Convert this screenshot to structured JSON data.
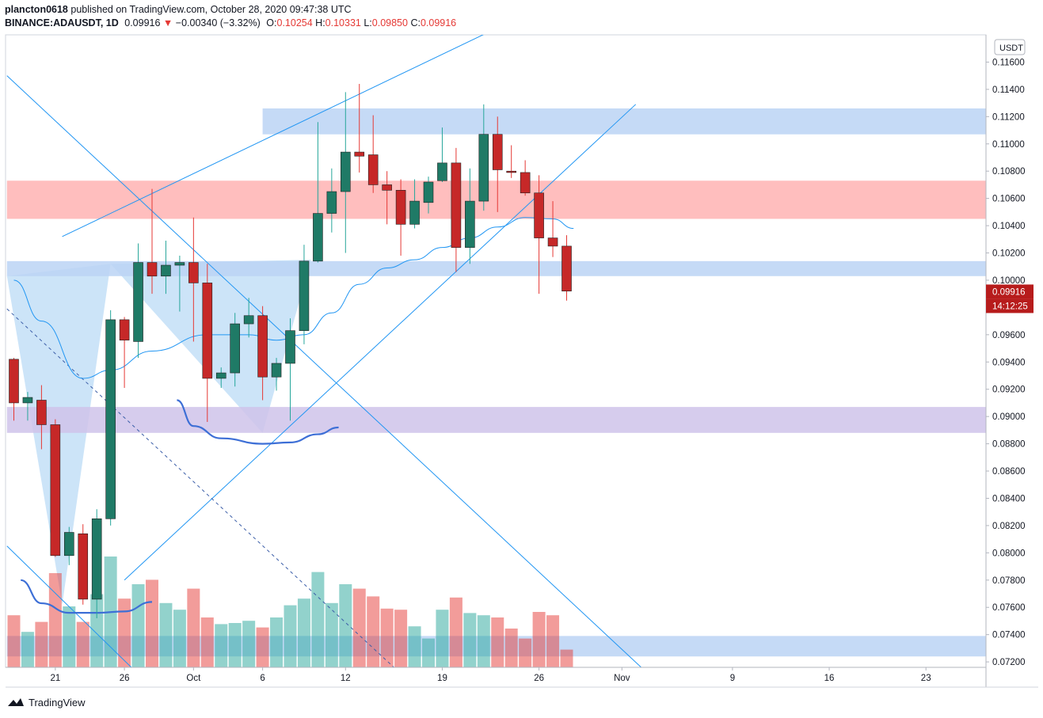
{
  "header": {
    "line1": {
      "user": "plancton0618",
      "text": " published on TradingView.com, October 28, 2020 09:47:38 UTC"
    },
    "symbol": "BINANCE:ADAUSDT, 1D",
    "last": "0.09916",
    "arrow": "▼",
    "change": "−0.00340 (−3.32%)",
    "o_label": "O:",
    "o": "0.10254",
    "h_label": "H:",
    "h": "0.10331",
    "l_label": "L:",
    "l": "0.09850",
    "c_label": "C:",
    "c": "0.09916"
  },
  "footer": {
    "brand": "TradingView"
  },
  "colors": {
    "up": "#26a69a",
    "upDark": "#1f6b5c",
    "down": "#e53935",
    "downDark": "#b71c1c",
    "line": "#2196f3",
    "zoneBlue": "#bbd3f5",
    "zoneRed": "#ffb3b3",
    "zonePurple": "#cfc3ea",
    "grid": "#ffffff"
  },
  "chart_data": {
    "type": "candlestick",
    "currency_label": "USDT",
    "ylim": [
      0.0716,
      0.118
    ],
    "yticks": [
      "0.11600",
      "0.11400",
      "0.11200",
      "0.11000",
      "0.10800",
      "0.10600",
      "0.10400",
      "0.10200",
      "0.10000",
      "0.09600",
      "0.09400",
      "0.09200",
      "0.09000",
      "0.08800",
      "0.08600",
      "0.08400",
      "0.08200",
      "0.08000",
      "0.07800",
      "0.07600",
      "0.07400",
      "0.07200"
    ],
    "last_price_label": "0.09916",
    "countdown_label": "14:12:25",
    "xticks": [
      {
        "i": 3,
        "label": "21"
      },
      {
        "i": 8,
        "label": "26"
      },
      {
        "i": 13,
        "label": "Oct"
      },
      {
        "i": 18,
        "label": "6"
      },
      {
        "i": 24,
        "label": "12"
      },
      {
        "i": 31,
        "label": "19"
      },
      {
        "i": 38,
        "label": "26"
      },
      {
        "i": 44,
        "label": "Nov"
      },
      {
        "i": 52,
        "label": "9"
      },
      {
        "i": 59,
        "label": "16"
      },
      {
        "i": 66,
        "label": "23"
      }
    ],
    "candles": [
      {
        "o": 0.0942,
        "h": 0.0943,
        "l": 0.0897,
        "c": 0.091
      },
      {
        "o": 0.091,
        "h": 0.0918,
        "l": 0.0897,
        "c": 0.0914
      },
      {
        "o": 0.0912,
        "h": 0.0923,
        "l": 0.0876,
        "c": 0.0894
      },
      {
        "o": 0.0894,
        "h": 0.0898,
        "l": 0.0797,
        "c": 0.0798
      },
      {
        "o": 0.0798,
        "h": 0.0819,
        "l": 0.0791,
        "c": 0.0815
      },
      {
        "o": 0.0814,
        "h": 0.0821,
        "l": 0.0762,
        "c": 0.0766
      },
      {
        "o": 0.0766,
        "h": 0.0832,
        "l": 0.0752,
        "c": 0.0825
      },
      {
        "o": 0.0825,
        "h": 0.0978,
        "l": 0.082,
        "c": 0.0971
      },
      {
        "o": 0.0971,
        "h": 0.0973,
        "l": 0.0921,
        "c": 0.0956
      },
      {
        "o": 0.0955,
        "h": 0.1027,
        "l": 0.0943,
        "c": 0.1013
      },
      {
        "o": 0.1013,
        "h": 0.1067,
        "l": 0.099,
        "c": 0.1003
      },
      {
        "o": 0.1003,
        "h": 0.1029,
        "l": 0.099,
        "c": 0.1011
      },
      {
        "o": 0.1011,
        "h": 0.1018,
        "l": 0.0977,
        "c": 0.1013
      },
      {
        "o": 0.1013,
        "h": 0.1046,
        "l": 0.0955,
        "c": 0.0998
      },
      {
        "o": 0.0998,
        "h": 0.1012,
        "l": 0.0896,
        "c": 0.0928
      },
      {
        "o": 0.0928,
        "h": 0.0936,
        "l": 0.0921,
        "c": 0.0932
      },
      {
        "o": 0.0932,
        "h": 0.0976,
        "l": 0.0922,
        "c": 0.0968
      },
      {
        "o": 0.0968,
        "h": 0.0987,
        "l": 0.0958,
        "c": 0.0974
      },
      {
        "o": 0.0974,
        "h": 0.0981,
        "l": 0.0912,
        "c": 0.0929
      },
      {
        "o": 0.0929,
        "h": 0.0943,
        "l": 0.0919,
        "c": 0.0939
      },
      {
        "o": 0.0939,
        "h": 0.0972,
        "l": 0.0897,
        "c": 0.0963
      },
      {
        "o": 0.0963,
        "h": 0.1026,
        "l": 0.0953,
        "c": 0.1014
      },
      {
        "o": 0.1014,
        "h": 0.1116,
        "l": 0.1013,
        "c": 0.1049
      },
      {
        "o": 0.1049,
        "h": 0.1082,
        "l": 0.1035,
        "c": 0.1065
      },
      {
        "o": 0.1065,
        "h": 0.1138,
        "l": 0.102,
        "c": 0.1094
      },
      {
        "o": 0.1094,
        "h": 0.1144,
        "l": 0.1079,
        "c": 0.1091
      },
      {
        "o": 0.1092,
        "h": 0.1121,
        "l": 0.1064,
        "c": 0.107
      },
      {
        "o": 0.107,
        "h": 0.108,
        "l": 0.1041,
        "c": 0.1066
      },
      {
        "o": 0.1066,
        "h": 0.1074,
        "l": 0.1018,
        "c": 0.1041
      },
      {
        "o": 0.1041,
        "h": 0.1074,
        "l": 0.1038,
        "c": 0.1058
      },
      {
        "o": 0.1057,
        "h": 0.1076,
        "l": 0.1049,
        "c": 0.1072
      },
      {
        "o": 0.1073,
        "h": 0.1112,
        "l": 0.1072,
        "c": 0.1086
      },
      {
        "o": 0.1086,
        "h": 0.1097,
        "l": 0.1006,
        "c": 0.1024
      },
      {
        "o": 0.1024,
        "h": 0.1082,
        "l": 0.1012,
        "c": 0.1058
      },
      {
        "o": 0.1058,
        "h": 0.1129,
        "l": 0.1051,
        "c": 0.1107
      },
      {
        "o": 0.1107,
        "h": 0.112,
        "l": 0.105,
        "c": 0.1081
      },
      {
        "o": 0.108,
        "h": 0.1099,
        "l": 0.1075,
        "c": 0.1079
      },
      {
        "o": 0.1079,
        "h": 0.1088,
        "l": 0.1062,
        "c": 0.1064
      },
      {
        "o": 0.1064,
        "h": 0.1077,
        "l": 0.099,
        "c": 0.1031
      },
      {
        "o": 0.1031,
        "h": 0.1058,
        "l": 0.1017,
        "c": 0.1025
      },
      {
        "o": 0.1025,
        "h": 0.1033,
        "l": 0.0985,
        "c": 0.0992
      }
    ],
    "volume_rel": [
      0.47,
      0.32,
      0.41,
      0.85,
      0.55,
      0.41,
      0.66,
      1.0,
      0.62,
      0.75,
      0.79,
      0.58,
      0.52,
      0.71,
      0.45,
      0.39,
      0.4,
      0.42,
      0.36,
      0.45,
      0.56,
      0.62,
      0.86,
      0.58,
      0.75,
      0.71,
      0.64,
      0.53,
      0.52,
      0.37,
      0.26,
      0.52,
      0.63,
      0.49,
      0.47,
      0.45,
      0.35,
      0.26,
      0.5,
      0.47,
      0.16
    ],
    "ma": [
      {
        "i": 0,
        "v": 0.1
      },
      {
        "i": 2,
        "v": 0.097
      },
      {
        "i": 5,
        "v": 0.0928
      },
      {
        "i": 7,
        "v": 0.0934
      },
      {
        "i": 10,
        "v": 0.0948
      },
      {
        "i": 14,
        "v": 0.096
      },
      {
        "i": 17,
        "v": 0.096
      },
      {
        "i": 19,
        "v": 0.0956
      },
      {
        "i": 21,
        "v": 0.096
      },
      {
        "i": 23,
        "v": 0.0976
      },
      {
        "i": 25,
        "v": 0.0997
      },
      {
        "i": 27,
        "v": 0.1009
      },
      {
        "i": 29,
        "v": 0.1015
      },
      {
        "i": 31,
        "v": 0.1024
      },
      {
        "i": 33,
        "v": 0.1031
      },
      {
        "i": 35,
        "v": 0.1039
      },
      {
        "i": 37,
        "v": 0.1046
      },
      {
        "i": 39,
        "v": 0.1045
      },
      {
        "i": 40.5,
        "v": 0.1038
      }
    ],
    "zones": [
      {
        "name": "zone-blue-top",
        "i0": 18,
        "i1": 71.7,
        "p0": 0.1126,
        "p1": 0.1107,
        "color": "blue"
      },
      {
        "name": "zone-red",
        "i0": -0.5,
        "i1": 72.4,
        "p0": 0.1073,
        "p1": 0.1045,
        "color": "red"
      },
      {
        "name": "zone-blue-mid",
        "i0": -0.5,
        "i1": 72.4,
        "p0": 0.1014,
        "p1": 0.1003,
        "color": "blue"
      },
      {
        "name": "zone-purple",
        "i0": -0.5,
        "i1": 72.4,
        "p0": 0.0907,
        "p1": 0.0888,
        "color": "purple"
      },
      {
        "name": "zone-blue-bottom",
        "i0": -0.5,
        "i1": 72.4,
        "p0": 0.0739,
        "p1": 0.0724,
        "color": "blue"
      }
    ],
    "trendlines": [
      {
        "name": "upper-channel-line",
        "a": [
          3.5,
          0.1032
        ],
        "b": [
          36,
          0.119
        ]
      },
      {
        "name": "rising-support-line",
        "a": [
          8,
          0.078
        ],
        "b": [
          45,
          0.1129
        ]
      },
      {
        "name": "falling-resistance-line",
        "a": [
          -0.5,
          0.115
        ],
        "b": [
          45.5,
          0.0715
        ]
      },
      {
        "name": "lower-falling-line",
        "a": [
          -0.5,
          0.0805
        ],
        "b": [
          8.5,
          0.0716
        ]
      }
    ],
    "dashed_lines": [
      {
        "name": "dashed-falling-line",
        "a": [
          -0.5,
          0.0979
        ],
        "b": [
          27.5,
          0.0716
        ]
      }
    ],
    "triangles": [
      {
        "name": "left-triangle",
        "pts": [
          [
            -0.5,
            0.1003
          ],
          [
            7,
            0.1012
          ],
          [
            3.5,
            0.0762
          ]
        ]
      },
      {
        "name": "right-triangle",
        "pts": [
          [
            7,
            0.1012
          ],
          [
            21.5,
            0.1015
          ],
          [
            18,
            0.0888
          ]
        ]
      }
    ],
    "curves": [
      {
        "name": "cup-curve-lower",
        "pts": [
          [
            0.5,
            0.078
          ],
          [
            2,
            0.0763
          ],
          [
            4,
            0.0756
          ],
          [
            6,
            0.0756
          ],
          [
            8,
            0.0757
          ],
          [
            10,
            0.0764
          ]
        ]
      },
      {
        "name": "cup-curve-upper",
        "pts": [
          [
            11.8,
            0.0912
          ],
          [
            13,
            0.0893
          ],
          [
            15,
            0.0884
          ],
          [
            18,
            0.088
          ],
          [
            20,
            0.0881
          ],
          [
            22,
            0.0887
          ],
          [
            23.5,
            0.0892
          ]
        ]
      }
    ]
  }
}
